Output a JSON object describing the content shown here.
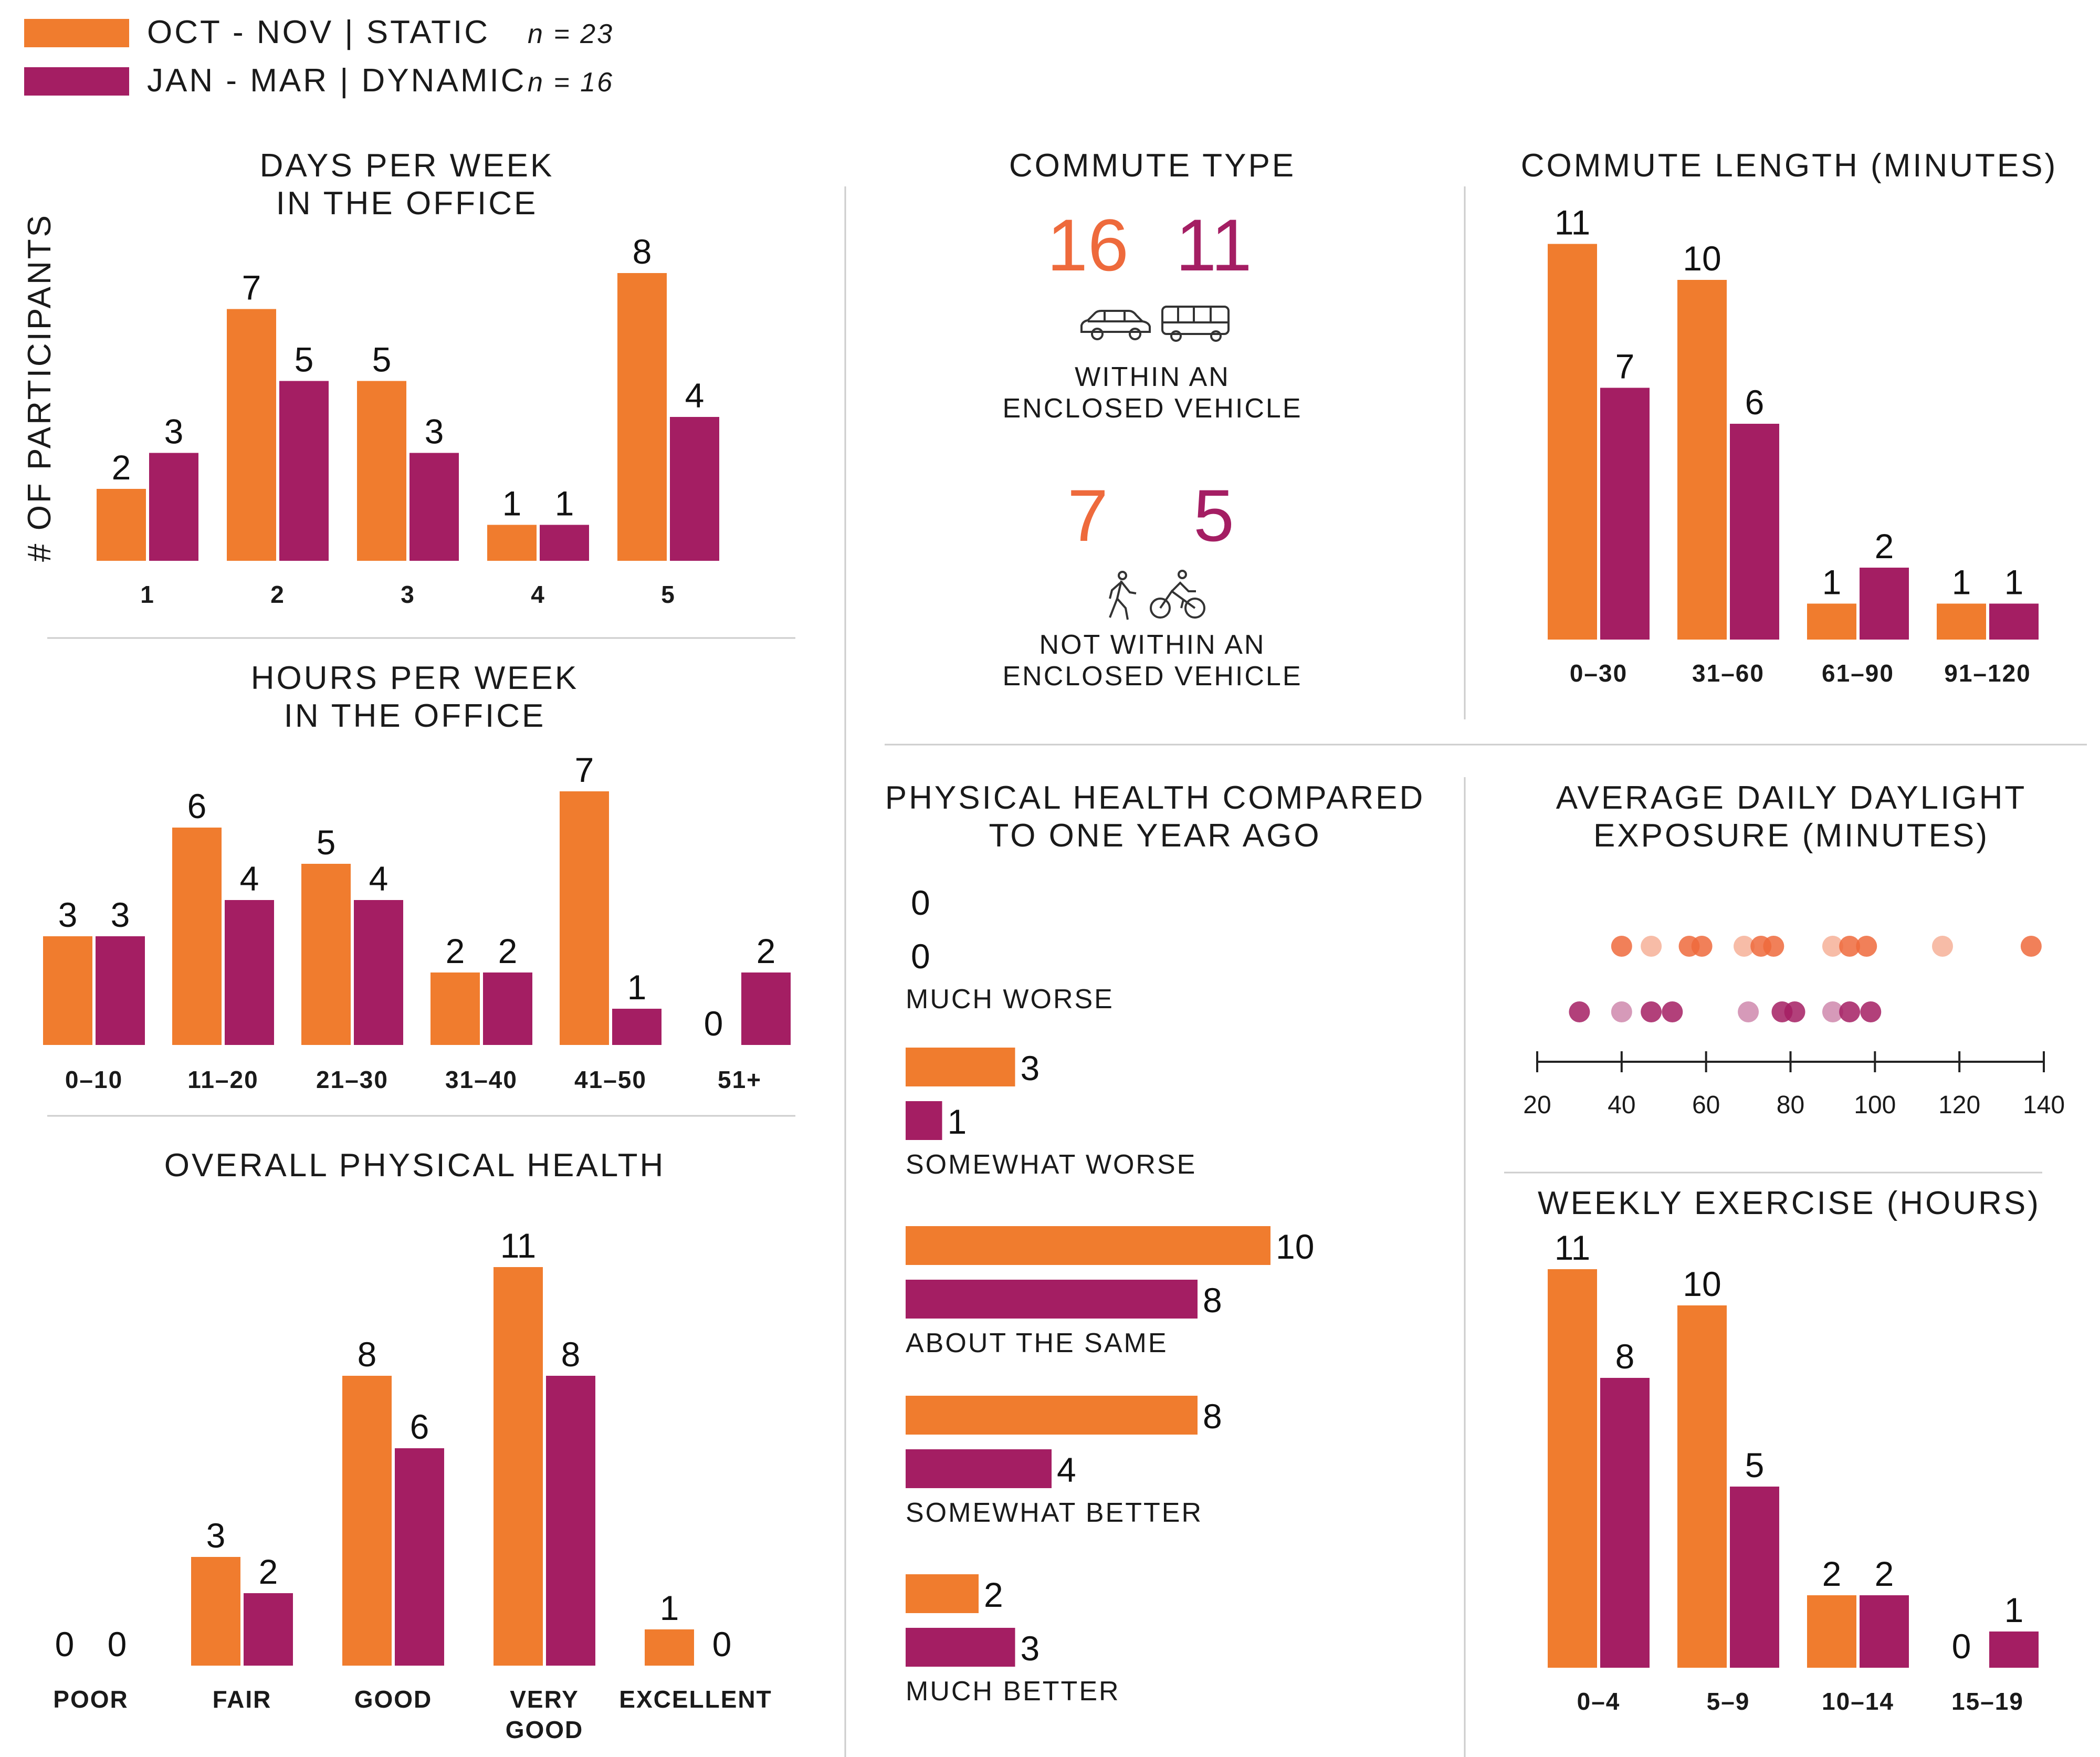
{
  "colors": {
    "static": "#F07C2E",
    "dynamic": "#A41E63",
    "static_dot": "#EE6A3C",
    "dynamic_dot": "#A41E63"
  },
  "legend": [
    {
      "label": "OCT - NOV | STATIC",
      "n": "n = 23"
    },
    {
      "label": "JAN - MAR | DYNAMIC",
      "n": "n = 16"
    }
  ],
  "y_axis_label": "# OF PARTICIPANTS",
  "icons": [
    "car-icon",
    "bus-icon",
    "walking-icon",
    "bicycle-icon"
  ],
  "chart_data": [
    {
      "id": "days",
      "type": "bar",
      "title": [
        "DAYS PER WEEK",
        "IN THE OFFICE"
      ],
      "categories": [
        "1",
        "2",
        "3",
        "4",
        "5"
      ],
      "series": [
        {
          "name": "OCT - NOV | STATIC",
          "values": [
            2,
            7,
            5,
            1,
            8
          ]
        },
        {
          "name": "JAN - MAR | DYNAMIC",
          "values": [
            3,
            5,
            3,
            1,
            4
          ]
        }
      ]
    },
    {
      "id": "hours",
      "type": "bar",
      "title": [
        "HOURS PER WEEK",
        "IN THE OFFICE"
      ],
      "categories": [
        "0–10",
        "11–20",
        "21–30",
        "31–40",
        "41–50",
        "51+"
      ],
      "series": [
        {
          "name": "OCT - NOV | STATIC",
          "values": [
            3,
            6,
            5,
            2,
            7,
            0
          ]
        },
        {
          "name": "JAN - MAR | DYNAMIC",
          "values": [
            3,
            4,
            4,
            2,
            1,
            2
          ]
        }
      ]
    },
    {
      "id": "health",
      "type": "bar",
      "title": [
        "OVERALL PHYSICAL HEALTH"
      ],
      "categories": [
        "POOR",
        "FAIR",
        "GOOD",
        "VERY GOOD",
        "EXCELLENT"
      ],
      "series": [
        {
          "name": "OCT - NOV | STATIC",
          "values": [
            0,
            3,
            8,
            11,
            1
          ]
        },
        {
          "name": "JAN - MAR | DYNAMIC",
          "values": [
            0,
            2,
            6,
            8,
            0
          ]
        }
      ]
    },
    {
      "id": "commute_type",
      "type": "table",
      "title": [
        "COMMUTE TYPE"
      ],
      "groups": [
        {
          "label": [
            "WITHIN AN",
            "ENCLOSED VEHICLE"
          ],
          "static": 16,
          "dynamic": 11
        },
        {
          "label": [
            "NOT WITHIN AN",
            "ENCLOSED VEHICLE"
          ],
          "static": 7,
          "dynamic": 5
        }
      ]
    },
    {
      "id": "commute_length",
      "type": "bar",
      "title": [
        "COMMUTE LENGTH (MINUTES)"
      ],
      "categories": [
        "0–30",
        "31–60",
        "61–90",
        "91–120"
      ],
      "series": [
        {
          "name": "OCT - NOV | STATIC",
          "values": [
            11,
            10,
            1,
            1
          ]
        },
        {
          "name": "JAN - MAR | DYNAMIC",
          "values": [
            7,
            6,
            2,
            1
          ]
        }
      ]
    },
    {
      "id": "health_compared",
      "type": "bar",
      "orientation": "horizontal",
      "title": [
        "PHYSICAL HEALTH COMPARED",
        "TO ONE YEAR AGO"
      ],
      "categories": [
        "MUCH WORSE",
        "SOMEWHAT WORSE",
        "ABOUT THE SAME",
        "SOMEWHAT BETTER",
        "MUCH BETTER"
      ],
      "series": [
        {
          "name": "OCT - NOV | STATIC",
          "values": [
            0,
            3,
            10,
            8,
            2
          ]
        },
        {
          "name": "JAN - MAR | DYNAMIC",
          "values": [
            0,
            1,
            8,
            4,
            3
          ]
        }
      ]
    },
    {
      "id": "daylight",
      "type": "scatter",
      "title": [
        "AVERAGE DAILY DAYLIGHT",
        "EXPOSURE (MINUTES)"
      ],
      "xlim": [
        20,
        140
      ],
      "xticks": [
        "20",
        "40",
        "60",
        "80",
        "100",
        "120",
        "140"
      ],
      "series": [
        {
          "name": "OCT - NOV | STATIC",
          "x": [
            40,
            47,
            56,
            59,
            69,
            73,
            76,
            90,
            94,
            98,
            116,
            137
          ]
        },
        {
          "name": "JAN - MAR | DYNAMIC",
          "x": [
            30,
            40,
            47,
            52,
            70,
            78,
            81,
            90,
            94,
            99
          ]
        }
      ]
    },
    {
      "id": "exercise",
      "type": "bar",
      "title": [
        "WEEKLY EXERCISE (HOURS)"
      ],
      "categories": [
        "0–4",
        "5–9",
        "10–14",
        "15–19"
      ],
      "series": [
        {
          "name": "OCT - NOV | STATIC",
          "values": [
            11,
            10,
            2,
            0
          ]
        },
        {
          "name": "JAN - MAR | DYNAMIC",
          "values": [
            8,
            5,
            2,
            1
          ]
        }
      ]
    }
  ]
}
